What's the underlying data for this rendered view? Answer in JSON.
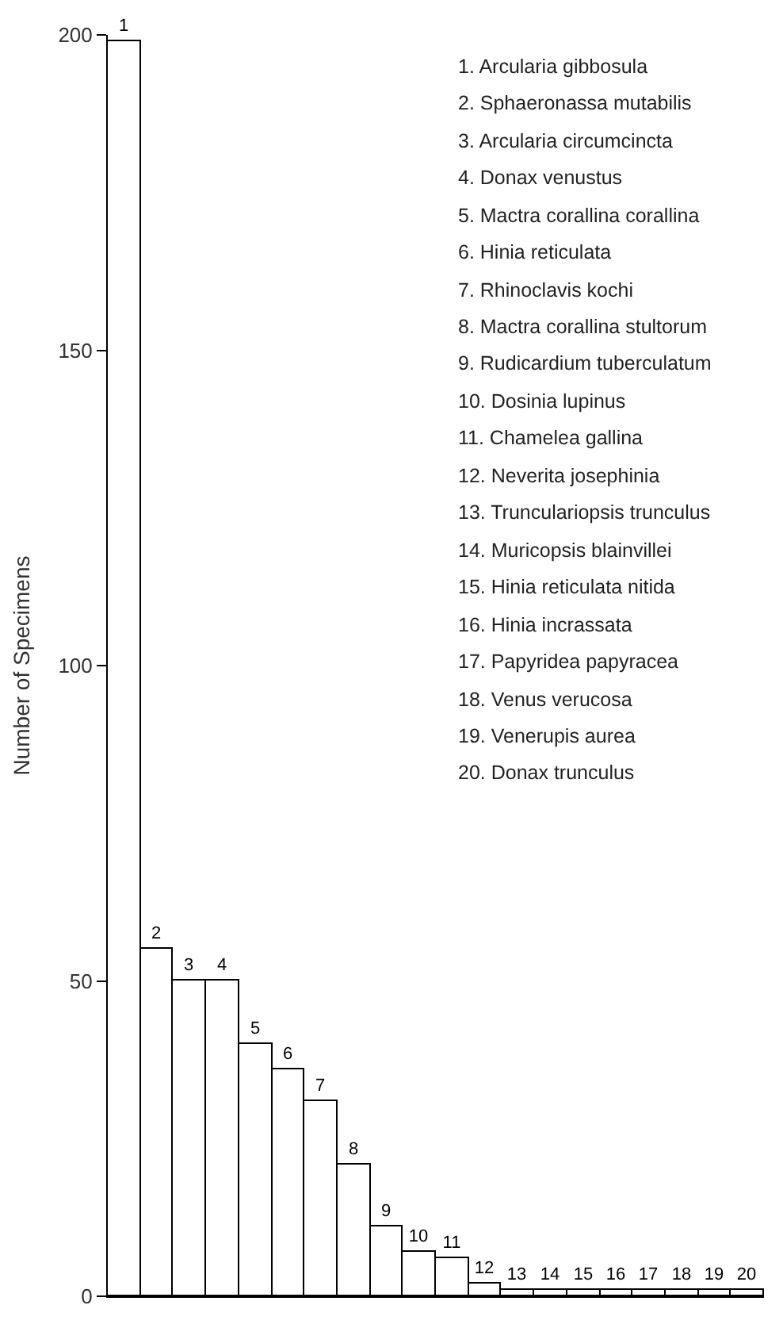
{
  "chart_data": {
    "type": "bar",
    "ylabel": "Number of Specimens",
    "categories": [
      "1",
      "2",
      "3",
      "4",
      "5",
      "6",
      "7",
      "8",
      "9",
      "10",
      "11",
      "12",
      "13",
      "14",
      "15",
      "16",
      "17",
      "18",
      "19",
      "20"
    ],
    "values": [
      199,
      55,
      50,
      50,
      40,
      36,
      31,
      21,
      11,
      7,
      6,
      2,
      1,
      1,
      1,
      1,
      1,
      1,
      1,
      1
    ],
    "color": "#ffffff",
    "ylim": [
      0,
      200
    ],
    "yticks": [
      0,
      50,
      100,
      150,
      200
    ],
    "annotations": [
      "1. Arcularia gibbosula",
      "2. Sphaeronassa mutabilis",
      "3. Arcularia circumcincta",
      "4. Donax venustus",
      "5. Mactra corallina corallina",
      "6. Hinia reticulata",
      "7. Rhinoclavis kochi",
      "8. Mactra corallina stultorum",
      "9. Rudicardium tuberculatum",
      "10. Dosinia lupinus",
      "11. Chamelea gallina",
      "12. Neverita josephinia",
      "13. Trunculariopsis trunculus",
      "14. Muricopsis blainvillei",
      "15. Hinia reticulata nitida",
      "16. Hinia incrassata",
      "17. Papyridea papyracea",
      "18. Venus verucosa",
      "19. Venerupis aurea",
      "20. Donax trunculus"
    ]
  }
}
